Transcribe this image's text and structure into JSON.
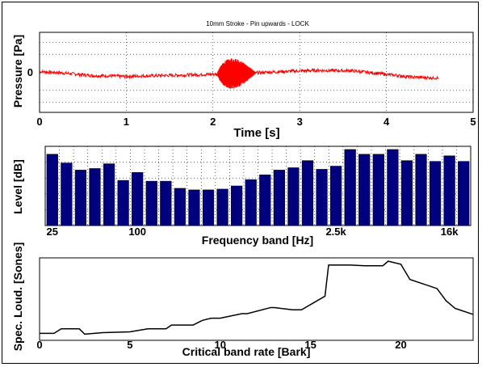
{
  "colors": {
    "pressure_trace": "#ff0000",
    "bars": "#00007f",
    "loudness_line": "#000000",
    "grid": "#000000"
  },
  "chart_data": [
    {
      "type": "line",
      "title": "10mm Stroke - Pin upwards - LOCK",
      "xlabel": "Time [s]",
      "ylabel": "Pressure [Pa]",
      "xlim": [
        0,
        5
      ],
      "ylim": [
        -1,
        1
      ],
      "x_ticks": [
        "0",
        "1",
        "2",
        "3",
        "4",
        "5"
      ],
      "y_ticks": [
        "0"
      ],
      "grid": true,
      "envelope": {
        "t": [
          0.0,
          0.3,
          0.6,
          1.0,
          1.4,
          1.8,
          2.1,
          2.4,
          2.8,
          3.2,
          3.6,
          4.0,
          4.3,
          4.6
        ],
        "mean": [
          0.02,
          -0.02,
          -0.08,
          -0.1,
          -0.08,
          -0.06,
          -0.04,
          -0.02,
          0.02,
          0.05,
          0.04,
          -0.05,
          -0.12,
          -0.14
        ],
        "noise": [
          0.04,
          0.04,
          0.04,
          0.04,
          0.04,
          0.04,
          0.04,
          0.04,
          0.04,
          0.04,
          0.04,
          0.04,
          0.04,
          0.04
        ]
      },
      "burst": {
        "t_start": 2.05,
        "t_end": 2.5,
        "amplitude": 0.38
      },
      "end_time": 4.6
    },
    {
      "type": "bar",
      "xlabel": "Frequency band [Hz]",
      "ylabel": "Level [dB]",
      "x_tick_labels": [
        {
          "label": "25",
          "band": 0
        },
        {
          "label": "100",
          "band": 6
        },
        {
          "label": "2.5k",
          "band": 20
        },
        {
          "label": "16k",
          "band": 28
        }
      ],
      "values": [
        0.9,
        0.79,
        0.7,
        0.72,
        0.78,
        0.57,
        0.67,
        0.56,
        0.56,
        0.47,
        0.45,
        0.45,
        0.46,
        0.5,
        0.58,
        0.64,
        0.7,
        0.73,
        0.82,
        0.71,
        0.75,
        0.96,
        0.9,
        0.9,
        0.96,
        0.82,
        0.9,
        0.81,
        0.88,
        0.81
      ],
      "ylim": [
        0,
        1
      ],
      "grid": true
    },
    {
      "type": "line",
      "xlabel": "Critical band rate [Bark]",
      "ylabel": "Spec. Loud. [Sones]",
      "xlim": [
        0,
        24
      ],
      "ylim": [
        0,
        1
      ],
      "x_ticks": [
        "0",
        "5",
        "10",
        "15",
        "20"
      ],
      "x": [
        0,
        0.8,
        1.2,
        2.2,
        2.5,
        3.5,
        5,
        6,
        7,
        7.3,
        8.5,
        9,
        9.5,
        10,
        11.2,
        11.5,
        12.8,
        13,
        14,
        14.5,
        15.8,
        16,
        17.2,
        18,
        18.5,
        19,
        19.3,
        20,
        20.5,
        21,
        22,
        22.5,
        23,
        24
      ],
      "y": [
        0.07,
        0.07,
        0.13,
        0.13,
        0.06,
        0.08,
        0.09,
        0.13,
        0.13,
        0.18,
        0.18,
        0.24,
        0.27,
        0.27,
        0.33,
        0.33,
        0.41,
        0.41,
        0.38,
        0.38,
        0.56,
        0.97,
        0.97,
        0.96,
        0.96,
        0.96,
        1.02,
        0.98,
        0.78,
        0.74,
        0.66,
        0.5,
        0.4,
        0.32
      ]
    }
  ]
}
